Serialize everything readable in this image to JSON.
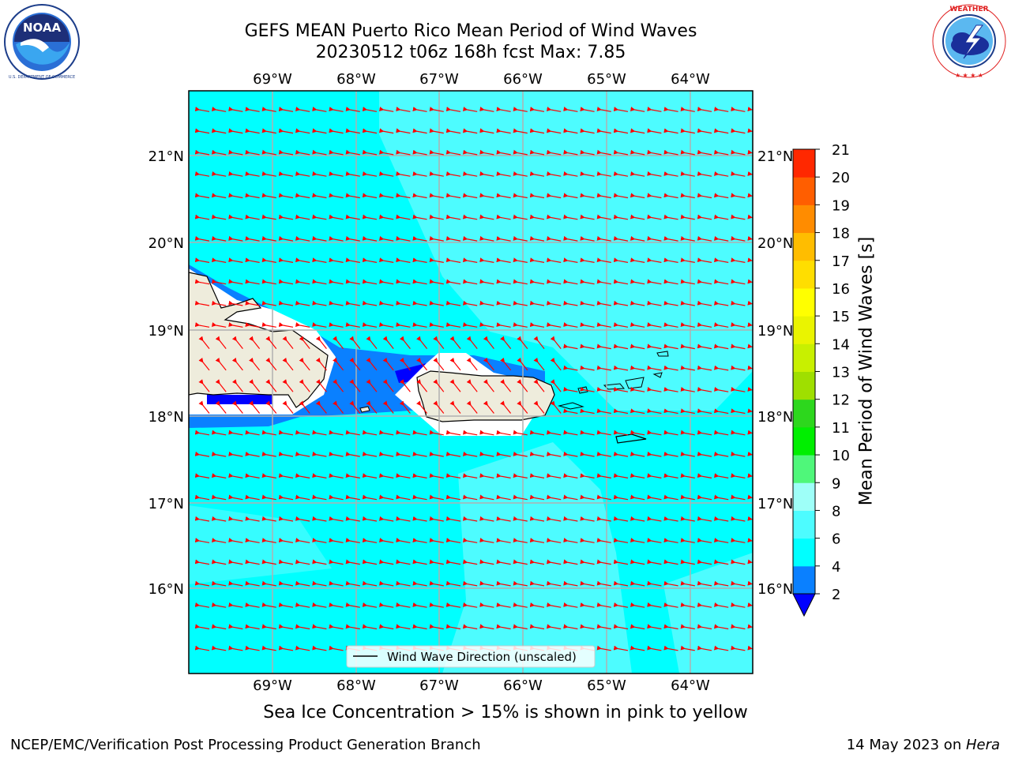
{
  "header": {
    "title_line1": "GEFS MEAN Puerto Rico Mean Period of Wind Waves",
    "title_line2": "20230512 t06z 168h fcst   Max: 7.85"
  },
  "logos": {
    "left": {
      "name": "noaa-logo",
      "text": "NOAA",
      "ring_text": "NATIONAL OCEANIC AND ATMOSPHERIC ADMINISTRATION · U.S. DEPARTMENT OF COMMERCE"
    },
    "right": {
      "name": "nws-logo",
      "ring_text": "NATIONAL WEATHER SERVICE"
    }
  },
  "map": {
    "lon_labels": [
      "69°W",
      "68°W",
      "67°W",
      "66°W",
      "65°W",
      "64°W"
    ],
    "lat_labels": [
      "21°N",
      "20°N",
      "19°N",
      "18°N",
      "17°N",
      "16°N"
    ],
    "lon_range": [
      -70.0,
      -63.25
    ],
    "lat_range": [
      15.0,
      21.75
    ],
    "legend_label": "Wind Wave Direction (unscaled)",
    "arrow_color": "#ff0000",
    "land_color": "#eeecdc",
    "ocean_colors": {
      "2-4": "#0a80ff",
      "4-6": "#00ffff",
      "6-8": "#4dfcff",
      "below-2": "#0000ff"
    }
  },
  "colorbar": {
    "title": "Mean Period of Wind Waves [s]",
    "ticks": [
      "2",
      "4",
      "6",
      "8",
      "9",
      "10",
      "11",
      "12",
      "13",
      "14",
      "15",
      "16",
      "17",
      "18",
      "19",
      "20",
      "21"
    ],
    "colors": [
      "#0a80ff",
      "#00ffff",
      "#4dfcff",
      "#9efff8",
      "#4ff77a",
      "#00ef00",
      "#2dd71d",
      "#9fdf00",
      "#c8f000",
      "#eaf400",
      "#ffff00",
      "#ffde00",
      "#ffbd00",
      "#ff8c00",
      "#ff5e00",
      "#ff2800",
      "#ff0000"
    ],
    "extend_color": "#0000ff"
  },
  "notes": {
    "ice": "Sea Ice Concentration > 15% is shown in pink to yellow"
  },
  "footer": {
    "left": "NCEP/EMC/Verification Post Processing Product Generation Branch",
    "right_prefix": "14 May 2023 on ",
    "right_italic": "Hera"
  }
}
